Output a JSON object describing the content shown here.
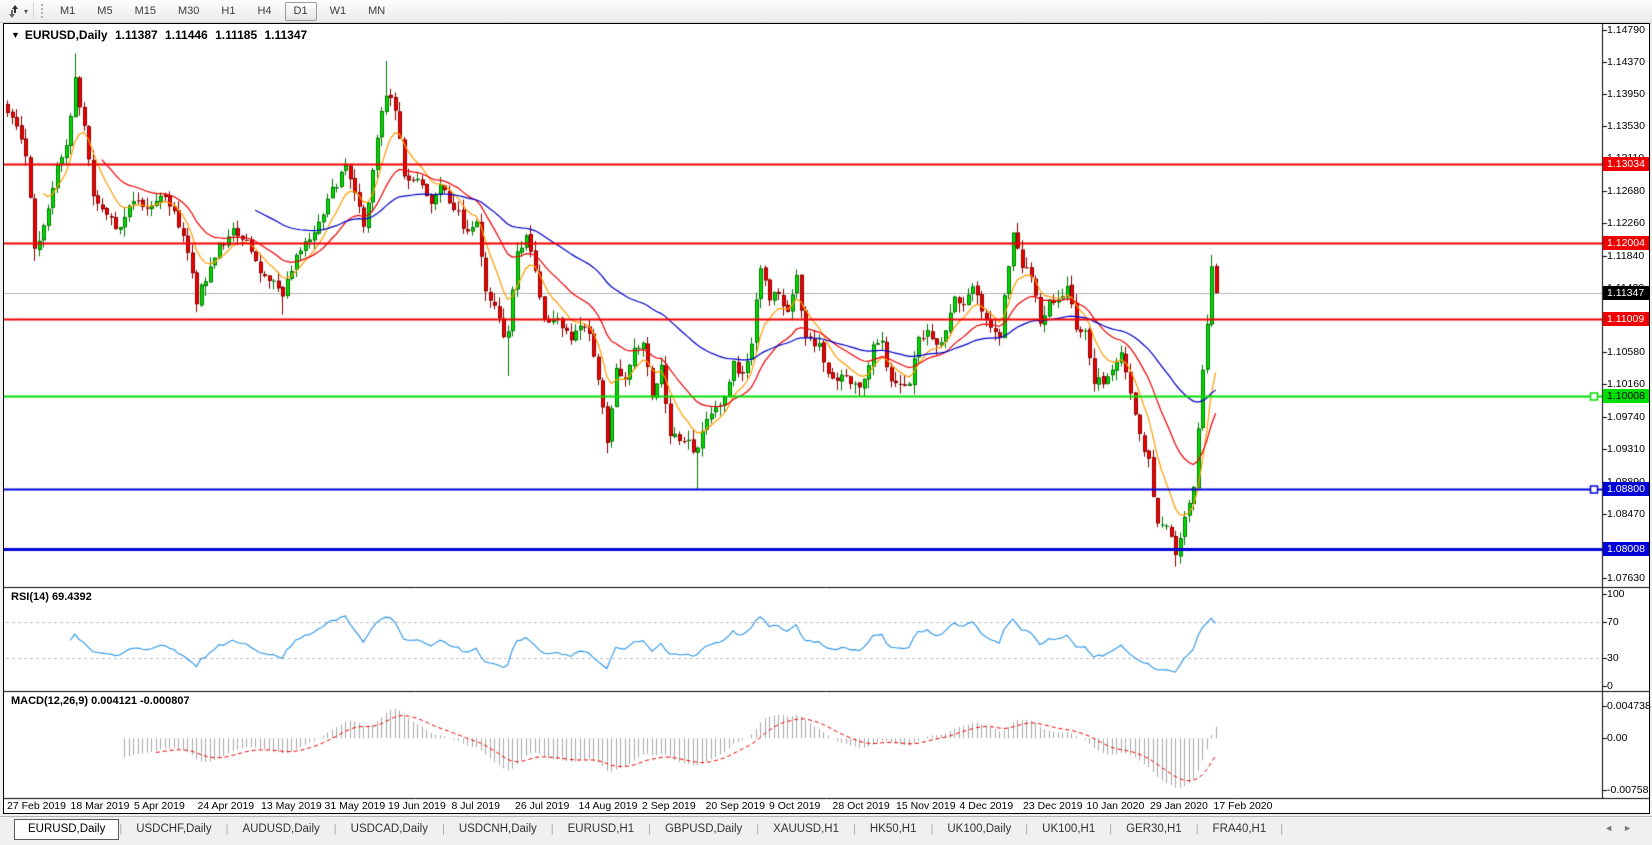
{
  "toolbar": {
    "timeframes": [
      "M1",
      "M5",
      "M15",
      "M30",
      "H1",
      "H4",
      "D1",
      "W1",
      "MN"
    ],
    "active_timeframe": "D1",
    "icon": "chart-swap-arrows-icon",
    "caret": "▾"
  },
  "chart_window": {
    "title": {
      "dropdown_glyph": "▼",
      "symbol": "EURUSD,Daily",
      "open": "1.11387",
      "high": "1.11446",
      "low": "1.11185",
      "close": "1.11347"
    },
    "price_axis_ticks": [
      "1.14790",
      "1.14370",
      "1.13950",
      "1.13530",
      "1.13110",
      "1.12680",
      "1.12260",
      "1.11840",
      "1.11420",
      "1.10580",
      "1.10160",
      "1.09740",
      "1.09310",
      "1.08890",
      "1.08470",
      "1.07630"
    ],
    "price_badges": [
      {
        "text": "1.13034",
        "bg": "#f00000",
        "fg": "#ffffff"
      },
      {
        "text": "1.12004",
        "bg": "#f00000",
        "fg": "#ffffff"
      },
      {
        "text": "1.11347",
        "bg": "#000000",
        "fg": "#ffffff"
      },
      {
        "text": "1.11009",
        "bg": "#f00000",
        "fg": "#ffffff"
      },
      {
        "text": "1.10008",
        "bg": "#00e000",
        "fg": "#000000"
      },
      {
        "text": "1.08800",
        "bg": "#0000d8",
        "fg": "#ffffff"
      },
      {
        "text": "1.08008",
        "bg": "#0000d8",
        "fg": "#ffffff"
      }
    ],
    "rsi_panel": {
      "label": "RSI(14) 69.4392",
      "axis": [
        "100",
        "70",
        "30",
        "0"
      ]
    },
    "macd_panel": {
      "label": "MACD(12,26,9) 0.004121 -0.000807",
      "axis": [
        "0.004738",
        "0.00",
        "-0.00758"
      ]
    },
    "date_axis": [
      "27 Feb 2019",
      "18 Mar 2019",
      "5 Apr 2019",
      "24 Apr 2019",
      "13 May 2019",
      "31 May 2019",
      "19 Jun 2019",
      "8 Jul 2019",
      "26 Jul 2019",
      "14 Aug 2019",
      "2 Sep 2019",
      "20 Sep 2019",
      "9 Oct 2019",
      "28 Oct 2019",
      "15 Nov 2019",
      "4 Dec 2019",
      "23 Dec 2019",
      "10 Jan 2020",
      "29 Jan 2020",
      "17 Feb 2020"
    ]
  },
  "tabs": {
    "items": [
      "EURUSD,Daily",
      "USDCHF,Daily",
      "AUDUSD,Daily",
      "USDCAD,Daily",
      "USDCNH,Daily",
      "EURUSD,H1",
      "GBPUSD,Daily",
      "XAUUSD,H1",
      "HK50,H1",
      "UK100,Daily",
      "UK100,H1",
      "GER30,H1",
      "FRA40,H1"
    ],
    "active": "EURUSD,Daily",
    "scroll_left": "◄",
    "scroll_right": "►"
  },
  "chart_data": {
    "type": "candlestick",
    "symbol": "EURUSD",
    "timeframe": "Daily",
    "price_range": {
      "max": 1.1485,
      "min": 1.0758
    },
    "candle_count": 269,
    "close_anchors": [
      [
        0,
        1.137
      ],
      [
        2,
        1.1358
      ],
      [
        4,
        1.131
      ],
      [
        6,
        1.1195
      ],
      [
        8,
        1.122
      ],
      [
        11,
        1.13
      ],
      [
        13,
        1.133
      ],
      [
        15,
        1.141
      ],
      [
        17,
        1.135
      ],
      [
        19,
        1.1268
      ],
      [
        22,
        1.1235
      ],
      [
        25,
        1.122
      ],
      [
        28,
        1.1258
      ],
      [
        31,
        1.124
      ],
      [
        34,
        1.1268
      ],
      [
        37,
        1.1242
      ],
      [
        40,
        1.119
      ],
      [
        42,
        1.1125
      ],
      [
        44,
        1.1155
      ],
      [
        47,
        1.1195
      ],
      [
        50,
        1.122
      ],
      [
        53,
        1.1205
      ],
      [
        56,
        1.1165
      ],
      [
        59,
        1.1152
      ],
      [
        61,
        1.113
      ],
      [
        63,
        1.1168
      ],
      [
        66,
        1.12
      ],
      [
        69,
        1.1225
      ],
      [
        72,
        1.127
      ],
      [
        75,
        1.13
      ],
      [
        77,
        1.1268
      ],
      [
        79,
        1.1215
      ],
      [
        81,
        1.13
      ],
      [
        83,
        1.137
      ],
      [
        84,
        1.1398
      ],
      [
        86,
        1.137
      ],
      [
        88,
        1.129
      ],
      [
        91,
        1.1282
      ],
      [
        94,
        1.125
      ],
      [
        96,
        1.1272
      ],
      [
        99,
        1.1248
      ],
      [
        102,
        1.1212
      ],
      [
        104,
        1.123
      ],
      [
        106,
        1.114
      ],
      [
        108,
        1.1118
      ],
      [
        110,
        1.1075
      ],
      [
        111,
        1.1085
      ],
      [
        113,
        1.1195
      ],
      [
        115,
        1.1205
      ],
      [
        117,
        1.1168
      ],
      [
        119,
        1.1102
      ],
      [
        122,
        1.1098
      ],
      [
        125,
        1.108
      ],
      [
        128,
        1.1092
      ],
      [
        130,
        1.1058
      ],
      [
        132,
        1.099
      ],
      [
        133,
        1.0945
      ],
      [
        135,
        1.1032
      ],
      [
        137,
        1.1028
      ],
      [
        139,
        1.1062
      ],
      [
        141,
        1.1072
      ],
      [
        143,
        1.1005
      ],
      [
        145,
        1.1042
      ],
      [
        147,
        1.0952
      ],
      [
        150,
        1.094
      ],
      [
        153,
        1.093
      ],
      [
        155,
        1.0968
      ],
      [
        157,
        1.0982
      ],
      [
        159,
        1.1002
      ],
      [
        161,
        1.1042
      ],
      [
        163,
        1.103
      ],
      [
        165,
        1.1072
      ],
      [
        167,
        1.117
      ],
      [
        169,
        1.1132
      ],
      [
        171,
        1.1128
      ],
      [
        173,
        1.1108
      ],
      [
        175,
        1.1152
      ],
      [
        177,
        1.1072
      ],
      [
        180,
        1.1068
      ],
      [
        182,
        1.1032
      ],
      [
        184,
        1.1018
      ],
      [
        186,
        1.1032
      ],
      [
        188,
        1.1012
      ],
      [
        190,
        1.1022
      ],
      [
        192,
        1.1062
      ],
      [
        194,
        1.1072
      ],
      [
        196,
        1.1018
      ],
      [
        198,
        1.1012
      ],
      [
        200,
        1.1022
      ],
      [
        202,
        1.1078
      ],
      [
        204,
        1.1082
      ],
      [
        206,
        1.1062
      ],
      [
        208,
        1.1092
      ],
      [
        210,
        1.113
      ],
      [
        212,
        1.1122
      ],
      [
        214,
        1.1148
      ],
      [
        216,
        1.1112
      ],
      [
        218,
        1.1092
      ],
      [
        220,
        1.1082
      ],
      [
        222,
        1.1175
      ],
      [
        223,
        1.121
      ],
      [
        225,
        1.1172
      ],
      [
        227,
        1.1162
      ],
      [
        229,
        1.1102
      ],
      [
        231,
        1.1122
      ],
      [
        233,
        1.1132
      ],
      [
        235,
        1.114
      ],
      [
        237,
        1.1092
      ],
      [
        239,
        1.1088
      ],
      [
        241,
        1.1022
      ],
      [
        243,
        1.102
      ],
      [
        245,
        1.1032
      ],
      [
        247,
        1.106
      ],
      [
        249,
        1.1002
      ],
      [
        251,
        1.0948
      ],
      [
        253,
        1.0912
      ],
      [
        255,
        1.0838
      ],
      [
        257,
        1.0832
      ],
      [
        259,
        1.0792
      ],
      [
        261,
        1.0848
      ],
      [
        263,
        1.0882
      ],
      [
        265,
        1.1035
      ],
      [
        266,
        1.1095
      ],
      [
        267,
        1.117
      ],
      [
        268,
        1.1135
      ]
    ],
    "wick_overrides": [
      {
        "i": 6,
        "low": 1.1177
      },
      {
        "i": 15,
        "high": 1.1448
      },
      {
        "i": 42,
        "low": 1.111
      },
      {
        "i": 61,
        "low": 1.1107
      },
      {
        "i": 84,
        "high": 1.1438
      },
      {
        "i": 111,
        "low": 1.1027
      },
      {
        "i": 133,
        "low": 1.0926
      },
      {
        "i": 153,
        "low": 1.0879
      },
      {
        "i": 259,
        "low": 1.0778
      },
      {
        "i": 267,
        "high": 1.1185
      }
    ],
    "colors": {
      "up_fill": "#00dc00",
      "up_edge": "#007800",
      "down_fill": "#f40000",
      "down_edge": "#8c0000",
      "ma_fast": "#ff9c00",
      "ma_mid": "#f00000",
      "ma_slow": "#0000c8",
      "rsi": "#2b95e8",
      "macd_hist": "#a8a8a8",
      "macd_signal": "#f00000",
      "current_price_line": "#b4b4b4"
    },
    "moving_averages": [
      {
        "period": 8,
        "color_key": "ma_fast"
      },
      {
        "period": 21,
        "color_key": "ma_mid"
      },
      {
        "period": 55,
        "color_key": "ma_slow"
      }
    ],
    "hlines": [
      {
        "price": 1.13034,
        "color": "#f00000",
        "width": 2
      },
      {
        "price": 1.12004,
        "color": "#f00000",
        "width": 2
      },
      {
        "price": 1.11009,
        "color": "#f00000",
        "width": 2
      },
      {
        "price": 1.10008,
        "color": "#00dd00",
        "width": 2,
        "handle": true
      },
      {
        "price": 1.088,
        "color": "#0000d8",
        "width": 2,
        "handle": true
      },
      {
        "price": 1.08008,
        "color": "#0000d8",
        "width": 3
      }
    ],
    "current_price": 1.11347,
    "rsi": {
      "period": 14,
      "levels": [
        70,
        30
      ],
      "range": [
        0,
        100
      ],
      "current": 69.4392
    },
    "macd": {
      "fast": 12,
      "slow": 26,
      "signal": 9,
      "range": [
        -0.00758,
        0.004738
      ],
      "current_main": 0.004121,
      "current_signal": -0.000807
    }
  }
}
